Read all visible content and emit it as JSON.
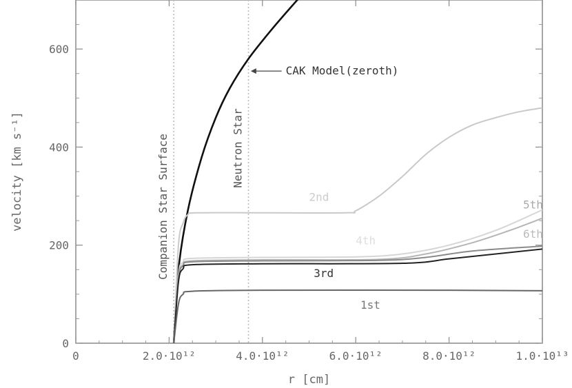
{
  "chart_data": {
    "type": "line",
    "title": "",
    "xlabel": "r [cm]",
    "ylabel": "velocity [km s⁻¹]",
    "xlim": [
      0,
      10000000000000.0
    ],
    "ylim": [
      0,
      700
    ],
    "x_ticks": [
      {
        "value": 0,
        "label": "0"
      },
      {
        "value": 2000000000000.0,
        "label": "2.0·10¹²"
      },
      {
        "value": 4000000000000.0,
        "label": "4.0·10¹²"
      },
      {
        "value": 6000000000000.0,
        "label": "6.0·10¹²"
      },
      {
        "value": 8000000000000.0,
        "label": "8.0·10¹²"
      },
      {
        "value": 10000000000000.0,
        "label": "1.0·10¹³"
      }
    ],
    "y_ticks": [
      {
        "value": 0,
        "label": "0"
      },
      {
        "value": 200,
        "label": "200"
      },
      {
        "value": 400,
        "label": "400"
      },
      {
        "value": 600,
        "label": "600"
      }
    ],
    "grid": false,
    "vlines": [
      {
        "x": 2100000000000.0,
        "label": "Companion Star Surface",
        "color": "#bbbbbb"
      },
      {
        "x": 3700000000000.0,
        "label": "Neutron Star",
        "color": "#bbbbbb"
      }
    ],
    "series": [
      {
        "name": "CAK Model(zeroth)",
        "color": "#111111",
        "points": [
          [
            2100000000000.0,
            0
          ],
          [
            2200000000000.0,
            150
          ],
          [
            2400000000000.0,
            270
          ],
          [
            2700000000000.0,
            380
          ],
          [
            3000000000000.0,
            460
          ],
          [
            3300000000000.0,
            520
          ],
          [
            3700000000000.0,
            580
          ],
          [
            4200000000000.0,
            640
          ],
          [
            4700000000000.0,
            695
          ],
          [
            4800000000000.0,
            705
          ]
        ]
      },
      {
        "name": "2nd",
        "color": "#c9c9c9",
        "points": [
          [
            2100000000000.0,
            0
          ],
          [
            2200000000000.0,
            200
          ],
          [
            2300000000000.0,
            245
          ],
          [
            2400000000000.0,
            262
          ],
          [
            2600000000000.0,
            266
          ],
          [
            4000000000000.0,
            266
          ],
          [
            5800000000000.0,
            266
          ],
          [
            6000000000000.0,
            270
          ],
          [
            6500000000000.0,
            300
          ],
          [
            7000000000000.0,
            340
          ],
          [
            7500000000000.0,
            385
          ],
          [
            8000000000000.0,
            420
          ],
          [
            8500000000000.0,
            445
          ],
          [
            9000000000000.0,
            460
          ],
          [
            9500000000000.0,
            472
          ],
          [
            10000000000000.0,
            480
          ]
        ]
      },
      {
        "name": "4th",
        "color": "#d6d6d6",
        "points": [
          [
            2100000000000.0,
            0
          ],
          [
            2200000000000.0,
            140
          ],
          [
            2300000000000.0,
            165
          ],
          [
            2500000000000.0,
            173
          ],
          [
            4000000000000.0,
            175
          ],
          [
            6000000000000.0,
            176
          ],
          [
            7000000000000.0,
            182
          ],
          [
            8000000000000.0,
            200
          ],
          [
            9000000000000.0,
            230
          ],
          [
            10000000000000.0,
            272
          ]
        ]
      },
      {
        "name": "5th",
        "color": "#b5b5b5",
        "points": [
          [
            2100000000000.0,
            0
          ],
          [
            2200000000000.0,
            135
          ],
          [
            2300000000000.0,
            160
          ],
          [
            2500000000000.0,
            168
          ],
          [
            4000000000000.0,
            170
          ],
          [
            6500000000000.0,
            171
          ],
          [
            7500000000000.0,
            182
          ],
          [
            8500000000000.0,
            205
          ],
          [
            9300000000000.0,
            230
          ],
          [
            10000000000000.0,
            255
          ]
        ]
      },
      {
        "name": "6th",
        "color": "#8a8a8a",
        "points": [
          [
            2100000000000.0,
            0
          ],
          [
            2200000000000.0,
            132
          ],
          [
            2300000000000.0,
            158
          ],
          [
            2500000000000.0,
            166
          ],
          [
            4000000000000.0,
            168
          ],
          [
            6500000000000.0,
            169
          ],
          [
            7500000000000.0,
            175
          ],
          [
            8500000000000.0,
            188
          ],
          [
            10000000000000.0,
            198
          ]
        ]
      },
      {
        "name": "3rd",
        "color": "#222222",
        "points": [
          [
            2100000000000.0,
            0
          ],
          [
            2200000000000.0,
            125
          ],
          [
            2300000000000.0,
            152
          ],
          [
            2500000000000.0,
            160
          ],
          [
            4000000000000.0,
            162
          ],
          [
            7000000000000.0,
            163
          ],
          [
            8000000000000.0,
            172
          ],
          [
            9000000000000.0,
            182
          ],
          [
            10000000000000.0,
            192
          ]
        ]
      },
      {
        "name": "1st",
        "color": "#666666",
        "points": [
          [
            2100000000000.0,
            0
          ],
          [
            2200000000000.0,
            80
          ],
          [
            2300000000000.0,
            100
          ],
          [
            2500000000000.0,
            106
          ],
          [
            4000000000000.0,
            108
          ],
          [
            8000000000000.0,
            108
          ],
          [
            10000000000000.0,
            107
          ]
        ]
      }
    ],
    "series_labels": [
      {
        "text": "CAK Model(zeroth)",
        "x": 4500000000000.0,
        "y": 548,
        "color": "#333333",
        "arrow_to": [
          3750000000000.0,
          555
        ]
      },
      {
        "text": "2nd",
        "x": 5000000000000.0,
        "y": 290,
        "color": "#cccccc"
      },
      {
        "text": "4th",
        "x": 6000000000000.0,
        "y": 202,
        "color": "#dddddd"
      },
      {
        "text": "5th",
        "x": 9800000000000.0,
        "y": 275,
        "color": "#aaaaaa"
      },
      {
        "text": "6th",
        "x": 9800000000000.0,
        "y": 215,
        "color": "#bbbbbb"
      },
      {
        "text": "3rd",
        "x": 5100000000000.0,
        "y": 135,
        "color": "#333333"
      },
      {
        "text": "1st",
        "x": 6100000000000.0,
        "y": 70,
        "color": "#777777"
      }
    ]
  }
}
